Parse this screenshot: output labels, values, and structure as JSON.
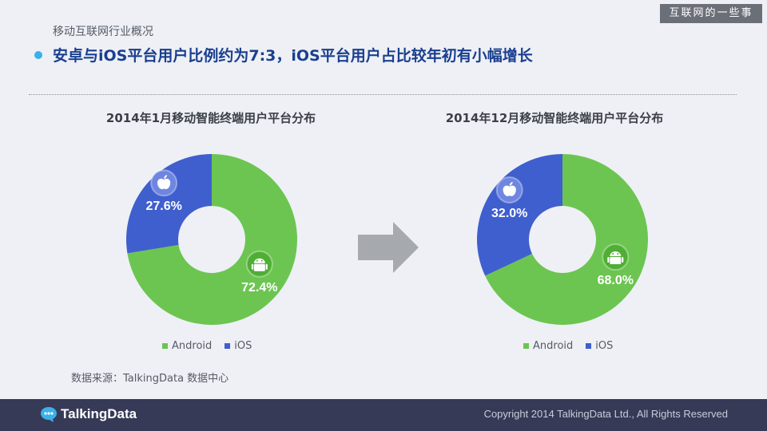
{
  "header": {
    "section_title": "移动互联网行业概况",
    "watermark": "互联网的一些事",
    "headline": "安卓与iOS平台用户比例约为7:3，iOS平台用户占比较年初有小幅增长"
  },
  "colors": {
    "android": "#6cc551",
    "ios": "#3f5fce",
    "arrow": "#a6a9ad",
    "footer": "#363a57",
    "headline": "#1a3f8f"
  },
  "icons": {
    "android": "android-icon",
    "ios": "apple-icon",
    "arrow": "right-arrow-icon"
  },
  "chart_data": [
    {
      "type": "pie",
      "donut": true,
      "title": "2014年1月移动智能终端用户平台分布",
      "categories": [
        "Android",
        "iOS"
      ],
      "values": [
        72.4,
        27.6
      ],
      "labels": [
        "72.4%",
        "27.6%"
      ],
      "legend": [
        "Android",
        "iOS"
      ],
      "legend_position": "bottom"
    },
    {
      "type": "pie",
      "donut": true,
      "title": "2014年12月移动智能终端用户平台分布",
      "categories": [
        "Android",
        "iOS"
      ],
      "values": [
        68.0,
        32.0
      ],
      "labels": [
        "68.0%",
        "32.0%"
      ],
      "legend": [
        "Android",
        "iOS"
      ],
      "legend_position": "bottom"
    }
  ],
  "source": "数据来源：TalkingData 数据中心",
  "footer": {
    "logo": "TalkingData",
    "copyright": "Copyright 2014 TalkingData Ltd., All Rights Reserved"
  }
}
